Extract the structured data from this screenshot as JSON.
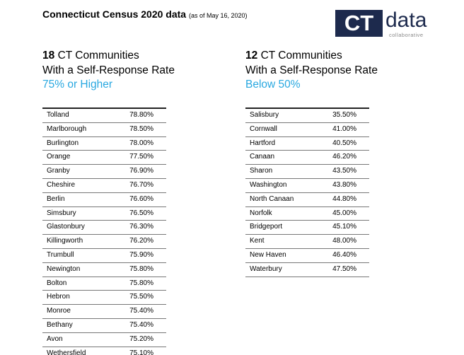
{
  "header": {
    "title": "Connecticut Census 2020 data",
    "subtitle": "(as of May 16, 2020)",
    "logo": {
      "mark": "CT",
      "word": "data",
      "tagline": "collaborative"
    }
  },
  "tables": [
    {
      "heading": {
        "count": "18",
        "line1": "CT Communities",
        "line2": "With a Self-Response Rate",
        "line3": "75% or Higher"
      },
      "rows": [
        [
          "Tolland",
          "78.80%"
        ],
        [
          "Marlborough",
          "78.50%"
        ],
        [
          "Burlington",
          "78.00%"
        ],
        [
          "Orange",
          "77.50%"
        ],
        [
          "Granby",
          "76.90%"
        ],
        [
          "Cheshire",
          "76.70%"
        ],
        [
          "Berlin",
          "76.60%"
        ],
        [
          "Simsbury",
          "76.50%"
        ],
        [
          "Glastonbury",
          "76.30%"
        ],
        [
          "Killingworth",
          "76.20%"
        ],
        [
          "Trumbull",
          "75.90%"
        ],
        [
          "Newington",
          "75.80%"
        ],
        [
          "Bolton",
          "75.80%"
        ],
        [
          "Hebron",
          "75.50%"
        ],
        [
          "Monroe",
          "75.40%"
        ],
        [
          "Bethany",
          "75.40%"
        ],
        [
          "Avon",
          "75.20%"
        ],
        [
          "Wethersfield",
          "75.10%"
        ]
      ]
    },
    {
      "heading": {
        "count": "12",
        "line1": "CT Communities",
        "line2": "With a Self-Response Rate",
        "line3": "Below 50%"
      },
      "rows": [
        [
          "Salisbury",
          "35.50%"
        ],
        [
          "Cornwall",
          "41.00%"
        ],
        [
          "Hartford",
          "40.50%"
        ],
        [
          "Canaan",
          "46.20%"
        ],
        [
          "Sharon",
          "43.50%"
        ],
        [
          "Washington",
          "43.80%"
        ],
        [
          "North Canaan",
          "44.80%"
        ],
        [
          "Norfolk",
          "45.00%"
        ],
        [
          "Bridgeport",
          "45.10%"
        ],
        [
          "Kent",
          "48.00%"
        ],
        [
          "New Haven",
          "46.40%"
        ],
        [
          "Waterbury",
          "47.50%"
        ]
      ]
    }
  ]
}
